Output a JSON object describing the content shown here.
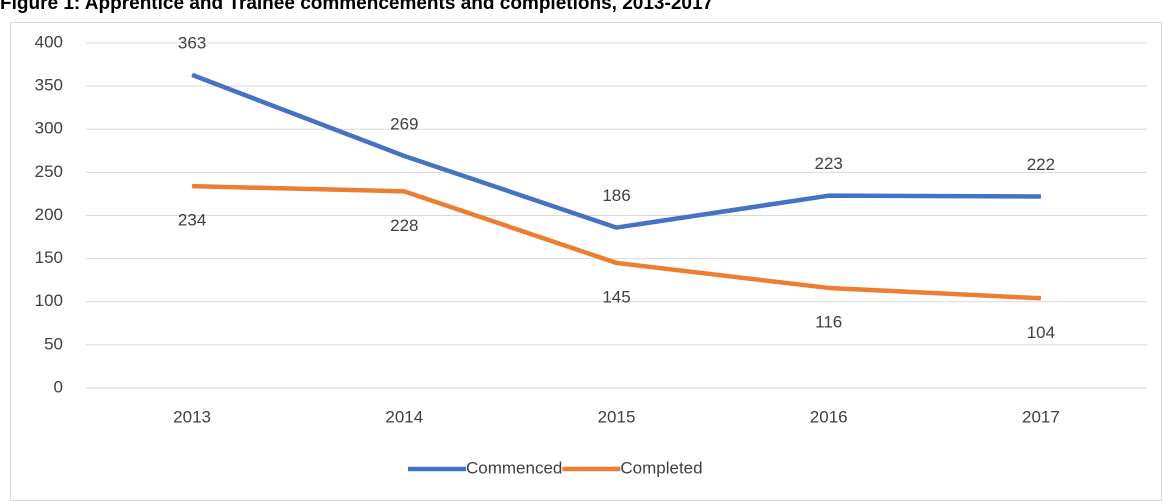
{
  "chart_data": {
    "type": "line",
    "title": "Figure 1: Apprentice and Trainee commencements and completions, 2013-2017",
    "categories": [
      "2013",
      "2014",
      "2015",
      "2016",
      "2017"
    ],
    "series": [
      {
        "name": "Commenced",
        "color": "#4472c4",
        "values": [
          363,
          269,
          186,
          223,
          222
        ]
      },
      {
        "name": "Completed",
        "color": "#ed7d31",
        "values": [
          234,
          228,
          145,
          116,
          104
        ]
      }
    ],
    "ylim": [
      0,
      400
    ],
    "yticks": [
      0,
      50,
      100,
      150,
      200,
      250,
      300,
      350,
      400
    ],
    "grid": true,
    "legend": "bottom"
  }
}
